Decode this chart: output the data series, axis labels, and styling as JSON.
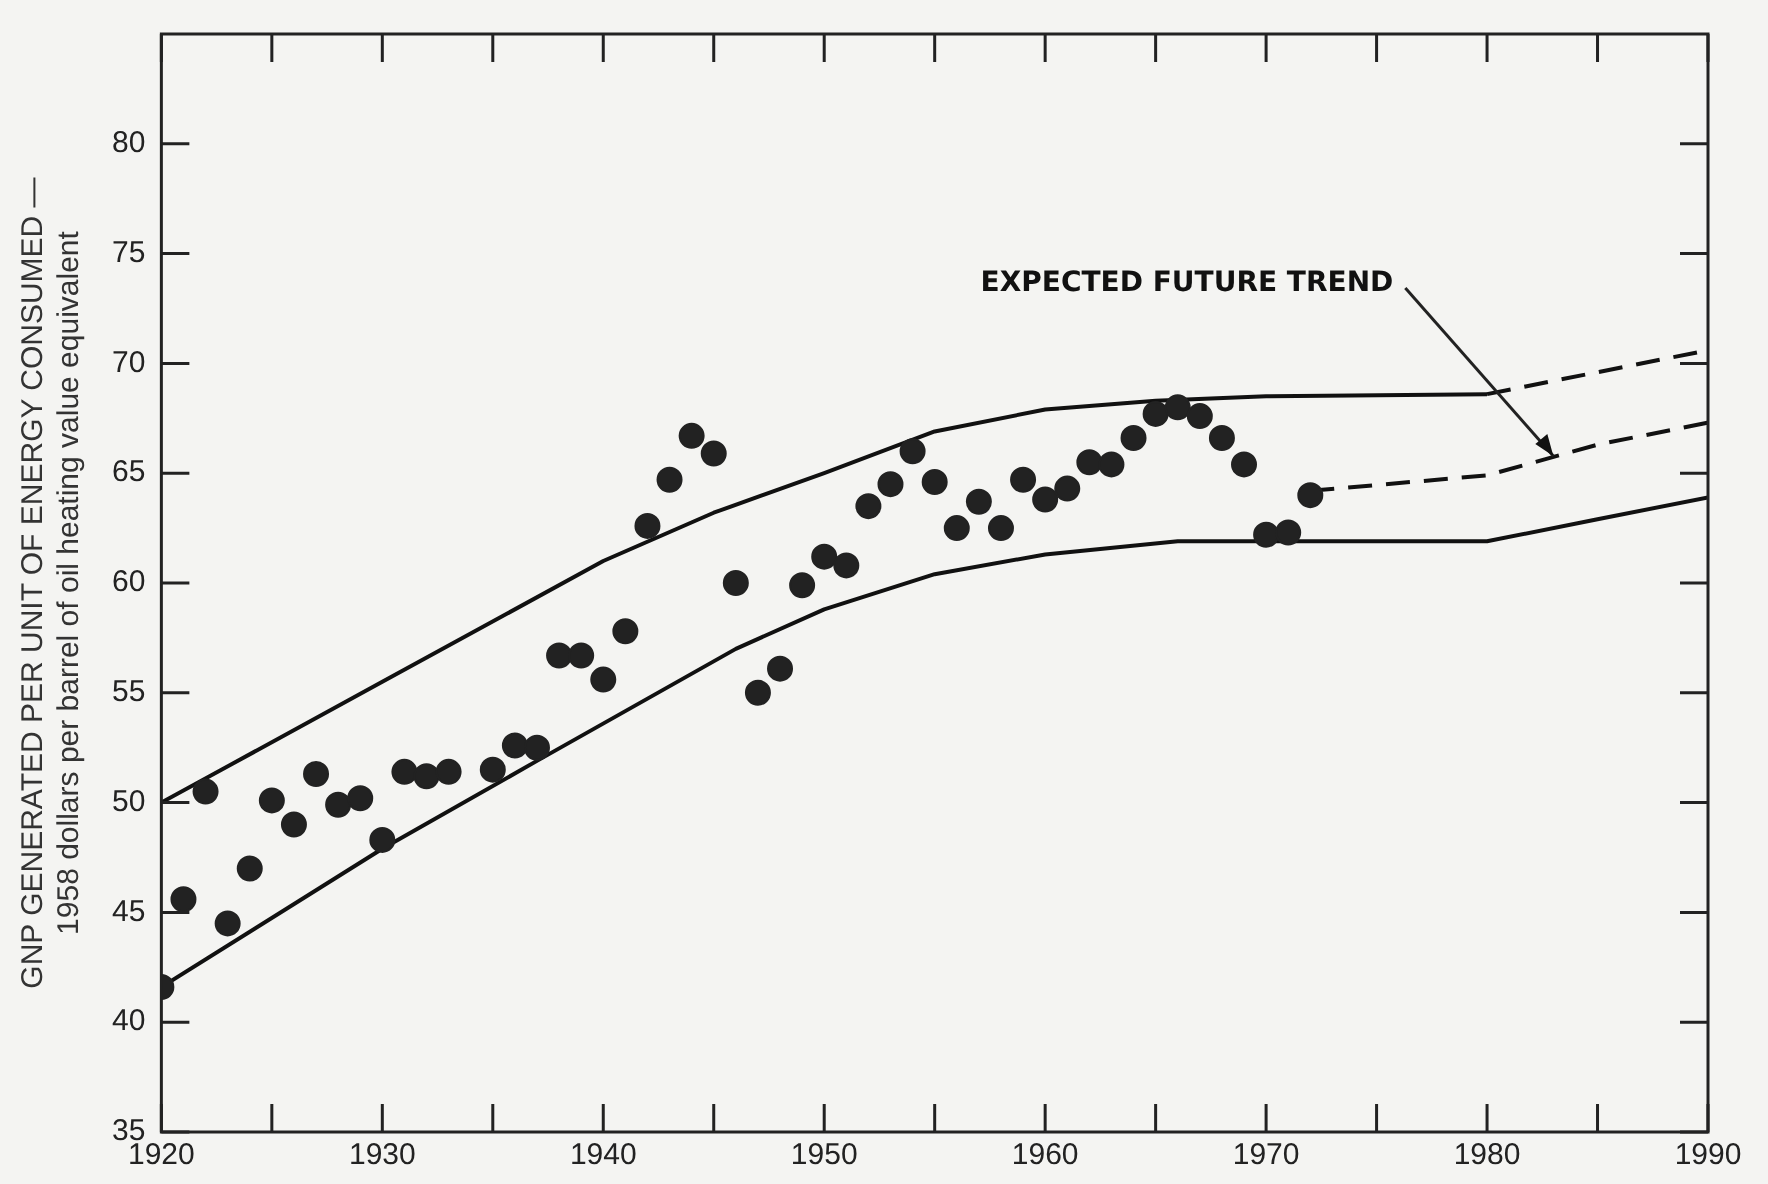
{
  "chart_data": {
    "type": "scatter",
    "ylabel": "GNP GENERATED PER UNIT OF ENERGY CONSUMED —\n1958 dollars per barrel of oil heating value equivalent",
    "xlim": [
      1920,
      1990
    ],
    "ylim": [
      35,
      85
    ],
    "xticks": [
      1920,
      {
        "value": 1925,
        "label": null
      },
      1930,
      {
        "value": 1935,
        "label": null
      },
      1940,
      {
        "value": 1945,
        "label": null
      },
      1950,
      {
        "value": 1955,
        "label": null
      },
      1960,
      {
        "value": 1965,
        "label": null
      },
      1970,
      {
        "value": 1975,
        "label": null
      },
      1980,
      {
        "value": 1985,
        "label": null
      },
      1990
    ],
    "yticks": [
      35,
      40,
      45,
      50,
      55,
      60,
      65,
      70,
      75,
      80
    ],
    "grid": false,
    "legend": false,
    "annotations": [
      {
        "text": "EXPECTED FUTURE TREND",
        "x": 1983,
        "y": 65.6
      }
    ],
    "series": [
      {
        "type": "scatter",
        "marker": "circle",
        "color": "#222222",
        "x": [
          1920,
          1921,
          1922,
          1923,
          1924,
          1925,
          1926,
          1927,
          1928,
          1929,
          1930,
          1931,
          1932,
          1933,
          1935,
          1936,
          1937,
          1938,
          1939,
          1940,
          1941,
          1942,
          1943,
          1944,
          1945,
          1946,
          1947,
          1948,
          1949,
          1950,
          1951,
          1952,
          1953,
          1954,
          1955,
          1956,
          1957,
          1958,
          1959,
          1960,
          1961,
          1962,
          1963,
          1964,
          1965,
          1966,
          1967,
          1968,
          1969,
          1970,
          1971,
          1972
        ],
        "values": [
          41.6,
          45.6,
          50.5,
          44.5,
          47.0,
          50.1,
          49.0,
          51.3,
          49.9,
          50.2,
          48.3,
          51.4,
          51.2,
          51.4,
          51.5,
          52.6,
          52.5,
          56.7,
          56.7,
          55.6,
          57.8,
          62.6,
          64.7,
          66.7,
          65.9,
          60.0,
          55.0,
          56.1,
          59.9,
          61.2,
          60.8,
          63.5,
          64.5,
          66.0,
          64.6,
          62.5,
          63.7,
          62.5,
          64.7,
          63.8,
          64.3,
          65.5,
          65.4,
          66.6,
          67.7,
          68.0,
          67.6,
          66.6,
          65.4,
          62.2,
          62.3,
          64.0
        ]
      },
      {
        "type": "line",
        "marker": "none",
        "line_style": "solid",
        "color": "#111111",
        "x": [
          1920,
          1930,
          1940,
          1945,
          1950,
          1955,
          1960,
          1965,
          1970,
          1980
        ],
        "values": [
          50.0,
          55.5,
          61.0,
          63.2,
          65.0,
          66.9,
          67.9,
          68.3,
          68.5,
          68.6
        ]
      },
      {
        "type": "line",
        "marker": "none",
        "line_style": "dashed",
        "color": "#111111",
        "x": [
          1980,
          1985,
          1990
        ],
        "values": [
          68.6,
          69.6,
          70.6
        ]
      },
      {
        "type": "line",
        "marker": "none",
        "line_style": "dashed",
        "color": "#111111",
        "x": [
          1972,
          1980,
          1985,
          1990
        ],
        "values": [
          64.2,
          64.9,
          66.3,
          67.3
        ]
      },
      {
        "type": "line",
        "marker": "none",
        "line_style": "solid",
        "color": "#111111",
        "x": [
          1920,
          1930,
          1937,
          1946,
          1950,
          1955,
          1960,
          1966,
          1980,
          1985,
          1990
        ],
        "values": [
          41.6,
          47.9,
          51.9,
          57.0,
          58.8,
          60.4,
          61.3,
          61.9,
          61.9,
          62.9,
          63.9
        ]
      }
    ]
  }
}
